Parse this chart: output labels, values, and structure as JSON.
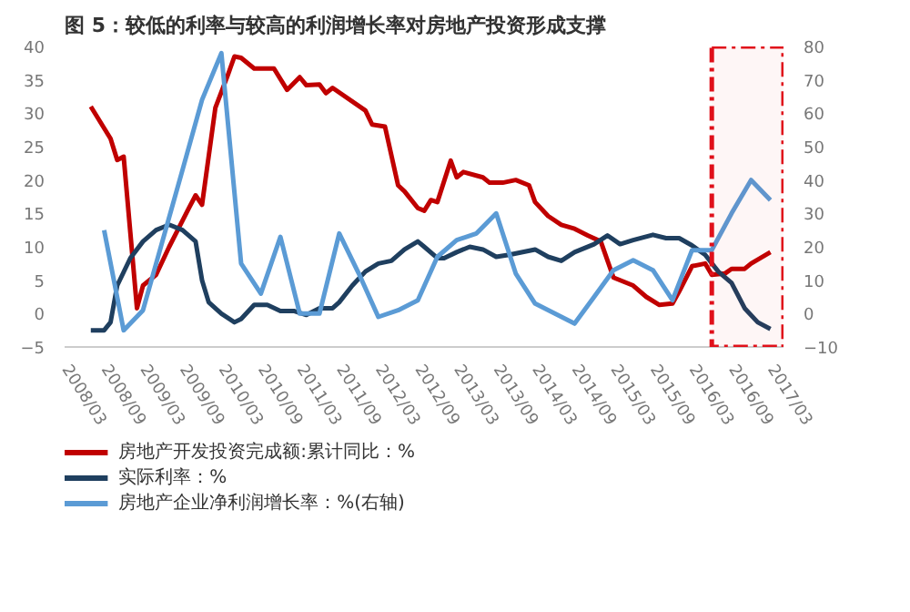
{
  "chart_data": {
    "type": "line",
    "title": "图 5：较低的利率与较高的利润增长率对房地产投资形成支撑",
    "xlim": [
      "2008-03",
      "2017-05"
    ],
    "xticks": [
      {
        "value": "2008-03",
        "label": "2008/03"
      },
      {
        "value": "2008-09",
        "label": "2008/09"
      },
      {
        "value": "2009-03",
        "label": "2009/03"
      },
      {
        "value": "2009-09",
        "label": "2009/09"
      },
      {
        "value": "2010-03",
        "label": "2010/03"
      },
      {
        "value": "2010-09",
        "label": "2010/09"
      },
      {
        "value": "2011-03",
        "label": "2011/03"
      },
      {
        "value": "2011-09",
        "label": "2011/09"
      },
      {
        "value": "2012-03",
        "label": "2012/03"
      },
      {
        "value": "2012-09",
        "label": "2012/09"
      },
      {
        "value": "2013-03",
        "label": "2013/03"
      },
      {
        "value": "2013-09",
        "label": "2013/09"
      },
      {
        "value": "2014-03",
        "label": "2014/03"
      },
      {
        "value": "2014-09",
        "label": "2014/09"
      },
      {
        "value": "2015-03",
        "label": "2015/03"
      },
      {
        "value": "2015-09",
        "label": "2015/09"
      },
      {
        "value": "2016-03",
        "label": "2016/03"
      },
      {
        "value": "2016-09",
        "label": "2016/09"
      },
      {
        "value": "2017-03",
        "label": "2017/03"
      }
    ],
    "ylim": [
      -5,
      40
    ],
    "yticks": [
      -5,
      0,
      5,
      10,
      15,
      20,
      25,
      30,
      35,
      40
    ],
    "y2lim": [
      -10,
      80
    ],
    "y2ticks": [
      -10,
      0,
      10,
      20,
      30,
      40,
      50,
      60,
      70,
      80
    ],
    "legend": "bottom",
    "bands": [
      {
        "axis": "x",
        "from": "2016-06",
        "to": "2017-05",
        "color": "#e0101a"
      }
    ],
    "series": [
      {
        "name": "房地产开发投资完成额:累计同比：%",
        "color": "#c00000",
        "x": [
          "2008-07",
          "2008-10",
          "2008-11",
          "2008-12",
          "2009-02",
          "2009-03",
          "2009-05",
          "2009-07",
          "2009-10",
          "2009-11",
          "2009-12",
          "2010-02",
          "2010-04",
          "2010-05",
          "2010-06",
          "2010-08",
          "2010-11",
          "2011-01",
          "2011-03",
          "2011-04",
          "2011-06",
          "2011-07",
          "2011-08",
          "2012-01",
          "2012-02",
          "2012-04",
          "2012-06",
          "2012-07",
          "2012-09",
          "2012-10",
          "2012-11",
          "2012-12",
          "2013-02",
          "2013-03",
          "2013-04",
          "2013-07",
          "2013-08",
          "2013-10",
          "2013-12",
          "2014-02",
          "2014-03",
          "2014-05",
          "2014-07",
          "2014-09",
          "2014-11",
          "2015-01",
          "2015-03",
          "2015-06",
          "2015-08",
          "2015-10",
          "2015-12",
          "2016-01",
          "2016-03",
          "2016-05",
          "2016-06",
          "2016-08",
          "2016-09",
          "2016-11",
          "2016-12",
          "2017-03"
        ],
        "values": [
          31,
          26.2,
          23,
          23.5,
          0.8,
          4.2,
          5.8,
          10,
          15.8,
          17.7,
          16.3,
          30.8,
          35.8,
          38.5,
          38.3,
          36.7,
          36.7,
          33.5,
          35.4,
          34.2,
          34.3,
          33,
          33.8,
          30.4,
          28.3,
          28,
          19.2,
          18.3,
          15.8,
          15.4,
          17,
          16.7,
          22.9,
          20.4,
          21.2,
          20.4,
          19.6,
          19.6,
          20,
          19.2,
          16.7,
          14.6,
          13.3,
          12.7,
          11.7,
          10.8,
          5.4,
          4.2,
          2.5,
          1.3,
          1.5,
          3.3,
          7.1,
          7.5,
          5.8,
          6,
          6.7,
          6.7,
          7.5,
          9.2
        ]
      },
      {
        "name": "实际利率：%",
        "color": "#1f3f5f",
        "x": [
          "2008-07",
          "2008-09",
          "2008-10",
          "2008-11",
          "2009-01",
          "2009-03",
          "2009-05",
          "2009-07",
          "2009-09",
          "2009-11",
          "2009-12",
          "2010-01",
          "2010-03",
          "2010-05",
          "2010-06",
          "2010-08",
          "2010-10",
          "2010-12",
          "2011-02",
          "2011-04",
          "2011-06",
          "2011-08",
          "2011-09",
          "2011-11",
          "2012-01",
          "2012-03",
          "2012-05",
          "2012-07",
          "2012-09",
          "2012-10",
          "2012-12",
          "2013-01",
          "2013-03",
          "2013-05",
          "2013-07",
          "2013-09",
          "2013-11",
          "2014-03",
          "2014-05",
          "2014-07",
          "2014-09",
          "2014-12",
          "2015-02",
          "2015-04",
          "2015-06",
          "2015-09",
          "2015-11",
          "2016-01",
          "2016-03",
          "2016-05",
          "2016-07",
          "2016-09",
          "2016-11",
          "2017-01",
          "2017-03"
        ],
        "values": [
          -2.5,
          -2.5,
          -1.3,
          4.2,
          8.3,
          10.8,
          12.5,
          13.3,
          12.5,
          10.8,
          5,
          1.7,
          0,
          -1.3,
          -0.8,
          1.3,
          1.3,
          0.4,
          0.4,
          -0.2,
          0.8,
          0.8,
          1.7,
          4.2,
          6.3,
          7.5,
          7.9,
          9.6,
          10.8,
          10,
          8.3,
          8.3,
          9.2,
          10,
          9.6,
          8.5,
          8.8,
          9.6,
          8.5,
          7.9,
          9.2,
          10.4,
          11.7,
          10.4,
          11,
          11.8,
          11.3,
          11.3,
          10.2,
          8.8,
          6.3,
          4.6,
          0.8,
          -1.3,
          -2.3
        ]
      },
      {
        "name": "房地产企业净利润增长率：%(右轴)",
        "color": "#5b9bd5",
        "axis": "y2",
        "x": [
          "2008-09",
          "2008-12",
          "2009-03",
          "2009-06",
          "2009-09",
          "2009-12",
          "2010-03",
          "2010-06",
          "2010-09",
          "2010-12",
          "2011-03",
          "2011-06",
          "2011-09",
          "2011-12",
          "2012-03",
          "2012-06",
          "2012-09",
          "2012-12",
          "2013-03",
          "2013-06",
          "2013-09",
          "2013-12",
          "2014-03",
          "2014-06",
          "2014-09",
          "2014-12",
          "2015-03",
          "2015-06",
          "2015-09",
          "2015-12",
          "2016-03",
          "2016-06",
          "2016-09",
          "2016-12",
          "2017-03"
        ],
        "values": [
          25,
          -5,
          1,
          22,
          43,
          64,
          78,
          15,
          6,
          23,
          0,
          0,
          24,
          12,
          -1,
          1,
          4,
          17,
          22,
          24,
          30,
          12,
          3,
          0,
          -3,
          5,
          13,
          16,
          13,
          4,
          19,
          19,
          30,
          40,
          34
        ]
      }
    ]
  }
}
